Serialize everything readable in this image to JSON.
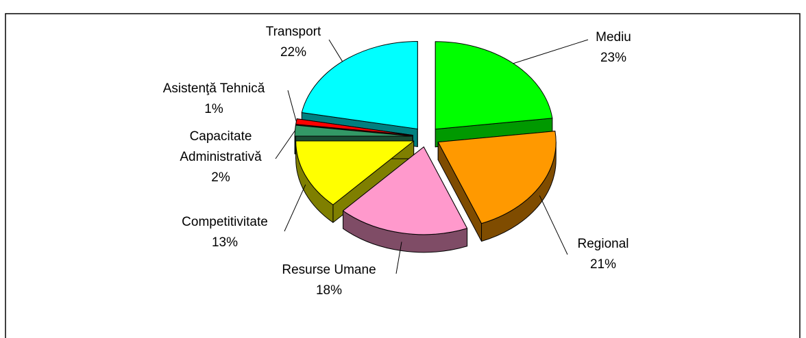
{
  "chart_data": {
    "type": "pie",
    "categories": [
      "Mediu",
      "Regional",
      "Resurse Umane",
      "Competitivitate",
      "Capacitate Administrativă",
      "Asistenţă Tehnică",
      "Transport"
    ],
    "values": [
      23,
      21,
      18,
      13,
      2,
      1,
      22
    ],
    "value_labels": [
      "23%",
      "21%",
      "18%",
      "13%",
      "2%",
      "1%",
      "22%"
    ],
    "colors": [
      "#00ff00",
      "#ff9900",
      "#ff99cc",
      "#ffff00",
      "#339966",
      "#ff0000",
      "#00ffff"
    ],
    "side_colors": [
      "#009900",
      "#7f4c00",
      "#7f4c66",
      "#7f7f00",
      "#1a4d33",
      "#800000",
      "#008080"
    ]
  }
}
